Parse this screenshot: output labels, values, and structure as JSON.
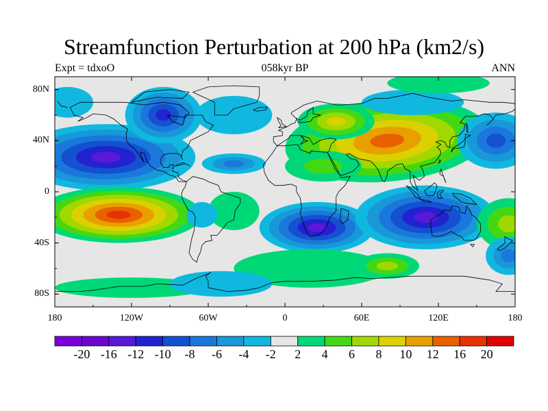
{
  "title": "Streamfunction Perturbation at 200 hPa (km2/s)",
  "left_string": "Expt = tdxoO",
  "center_string": "058kyr BP",
  "right_string": "ANN",
  "lat_ticks": [
    {
      "label": "80N",
      "lat": 80
    },
    {
      "label": "40N",
      "lat": 40
    },
    {
      "label": "0",
      "lat": 0
    },
    {
      "label": "40S",
      "lat": -40
    },
    {
      "label": "80S",
      "lat": -80
    }
  ],
  "lon_ticks": [
    {
      "label": "180",
      "lon": -180
    },
    {
      "label": "120W",
      "lon": -120
    },
    {
      "label": "60W",
      "lon": -60
    },
    {
      "label": "0",
      "lon": 0
    },
    {
      "label": "60E",
      "lon": 60
    },
    {
      "label": "120E",
      "lon": 120
    },
    {
      "label": "180",
      "lon": 180
    }
  ],
  "colorbar": {
    "labels": [
      "-20",
      "-16",
      "-12",
      "-10",
      "-8",
      "-6",
      "-4",
      "-2",
      "2",
      "4",
      "6",
      "8",
      "10",
      "12",
      "16",
      "20"
    ],
    "colors": [
      "#7a00d8",
      "#6a08d0",
      "#5a18d8",
      "#2222d0",
      "#1450d0",
      "#1a78dc",
      "#1898d8",
      "#10b8e0",
      "#e6e6e6",
      "#00d878",
      "#44d814",
      "#a0d800",
      "#dcd000",
      "#e8a000",
      "#e86000",
      "#e83000",
      "#e00000"
    ]
  }
}
